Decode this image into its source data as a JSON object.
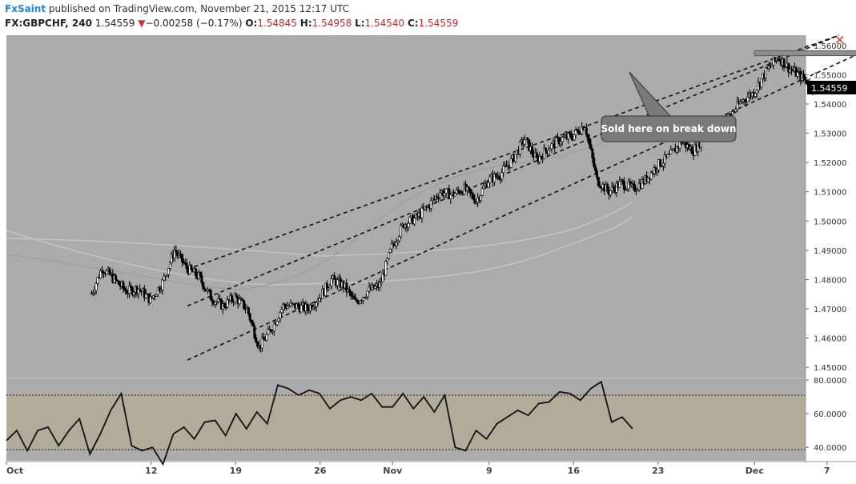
{
  "header": {
    "author": "FxSaint",
    "published_text": " published on TradingView.com, November 21, 2015 12:17 UTC",
    "symbol": "FX:GBPCHF, 240",
    "last": "1.54559",
    "change_arrow": "▼",
    "change": "−0.00258 (−0.17%)",
    "o_label": "O:",
    "o_value": "1.54845",
    "h_label": "H:",
    "h_value": "1.54958",
    "l_label": "L:",
    "l_value": "1.54540",
    "c_label": "C:",
    "c_value": "1.54559"
  },
  "colors": {
    "plot_bg": "#ababab",
    "rsi_band": "#b3ab9a",
    "candle_up": "#ffffff",
    "candle_down": "#000000",
    "marker_x": "#e53935",
    "annotation_bg": "#7a7a7a"
  },
  "chart_data": [
    {
      "type": "candlestick",
      "title": "FX:GBPCHF, 240",
      "ylim": [
        1.4465,
        1.5635
      ],
      "y_ticks": [
        "1.56000",
        "1.55000",
        "1.54000",
        "1.53000",
        "1.52000",
        "1.51000",
        "1.50000",
        "1.49000",
        "1.48000",
        "1.47000",
        "1.46000",
        "1.45000"
      ],
      "y_tick_values": [
        1.56,
        1.55,
        1.54,
        1.53,
        1.52,
        1.51,
        1.5,
        1.49,
        1.48,
        1.47,
        1.46,
        1.45
      ],
      "x_ticks": [
        "Oct",
        "12",
        "19",
        "26",
        "Nov",
        "9",
        "16",
        "23",
        "Dec",
        "7"
      ],
      "last_price_label": "1.54559",
      "close_path": [
        [
          "2015-10-07",
          1.474
        ],
        [
          "2015-10-08",
          1.484
        ],
        [
          "2015-10-09",
          1.48
        ],
        [
          "2015-10-10",
          1.476
        ],
        [
          "2015-10-11",
          1.477
        ],
        [
          "2015-10-12",
          1.473
        ],
        [
          "2015-10-13",
          1.479
        ],
        [
          "2015-10-14",
          1.49
        ],
        [
          "2015-10-15",
          1.484
        ],
        [
          "2015-10-16",
          1.481
        ],
        [
          "2015-10-17",
          1.474
        ],
        [
          "2015-10-18",
          1.471
        ],
        [
          "2015-10-19",
          1.474
        ],
        [
          "2015-10-20",
          1.47
        ],
        [
          "2015-10-21",
          1.457
        ],
        [
          "2015-10-22",
          1.463
        ],
        [
          "2015-10-23",
          1.471
        ],
        [
          "2015-10-24",
          1.471
        ],
        [
          "2015-10-25",
          1.47
        ],
        [
          "2015-10-26",
          1.474
        ],
        [
          "2015-10-27",
          1.48
        ],
        [
          "2015-10-28",
          1.478
        ],
        [
          "2015-10-29",
          1.472
        ],
        [
          "2015-10-30",
          1.476
        ],
        [
          "2015-10-31",
          1.478
        ],
        [
          "2015-11-01",
          1.491
        ],
        [
          "2015-11-02",
          1.499
        ],
        [
          "2015-11-03",
          1.501
        ],
        [
          "2015-11-04",
          1.505
        ],
        [
          "2015-11-05",
          1.51
        ],
        [
          "2015-11-06",
          1.509
        ],
        [
          "2015-11-07",
          1.511
        ],
        [
          "2015-11-08",
          1.507
        ],
        [
          "2015-11-09",
          1.514
        ],
        [
          "2015-11-10",
          1.516
        ],
        [
          "2015-11-11",
          1.521
        ],
        [
          "2015-11-12",
          1.528
        ],
        [
          "2015-11-13",
          1.521
        ],
        [
          "2015-11-14",
          1.525
        ],
        [
          "2015-11-15",
          1.528
        ],
        [
          "2015-11-16",
          1.529
        ],
        [
          "2015-11-17",
          1.533
        ],
        [
          "2015-11-18",
          1.514
        ],
        [
          "2015-11-19",
          1.51
        ],
        [
          "2015-11-20",
          1.513
        ],
        [
          "2015-11-21",
          1.511
        ],
        [
          "2015-11-22",
          1.514
        ],
        [
          "2015-11-23",
          1.519
        ],
        [
          "2015-11-24",
          1.522
        ],
        [
          "2015-11-25",
          1.527
        ],
        [
          "2015-11-26",
          1.524
        ],
        [
          "2015-11-27",
          1.53
        ],
        [
          "2015-11-28",
          1.533
        ],
        [
          "2015-11-29",
          1.536
        ],
        [
          "2015-11-30",
          1.541
        ],
        [
          "2015-12-01",
          1.544
        ],
        [
          "2015-12-02",
          1.551
        ],
        [
          "2015-12-03",
          1.556
        ],
        [
          "2015-12-04",
          1.552
        ],
        [
          "2015-12-05",
          1.549
        ],
        [
          "2015-12-06",
          1.5456
        ]
      ],
      "channel_lines": [
        {
          "from": [
            "2015-10-15",
            1.4835
          ],
          "to": [
            "2015-12-08",
            1.5635
          ]
        },
        {
          "from": [
            "2015-10-15",
            1.471
          ],
          "to": [
            "2015-12-08",
            1.5635
          ]
        },
        {
          "from": [
            "2015-10-15",
            1.4525
          ],
          "to": [
            "2015-12-13",
            1.5635
          ]
        }
      ],
      "resistance_zone": {
        "x_from": "2015-12-01",
        "x_to": "2015-12-15",
        "y_low": 1.5565,
        "y_high": 1.5582
      },
      "annotation": "Sold here on break down"
    },
    {
      "type": "line",
      "title": "",
      "ylim": [
        32,
        80.5
      ],
      "y_ticks": [
        "80.0000",
        "60.0000",
        "40.0000"
      ],
      "y_tick_values": [
        80,
        60,
        40
      ],
      "band": [
        30,
        70
      ],
      "values": [
        44,
        50,
        38,
        50,
        52,
        41,
        50,
        57,
        36,
        48,
        62,
        72,
        41,
        38,
        40,
        30,
        48,
        52,
        45,
        55,
        56,
        47,
        60,
        51,
        61,
        54,
        77,
        75,
        71,
        74,
        72,
        63,
        68,
        70,
        68,
        72,
        64,
        64,
        72,
        63,
        70,
        61,
        71,
        40,
        38,
        50,
        45,
        54,
        58,
        62,
        59,
        66,
        67,
        73,
        72,
        68,
        75,
        79,
        55,
        58,
        51
      ]
    }
  ]
}
